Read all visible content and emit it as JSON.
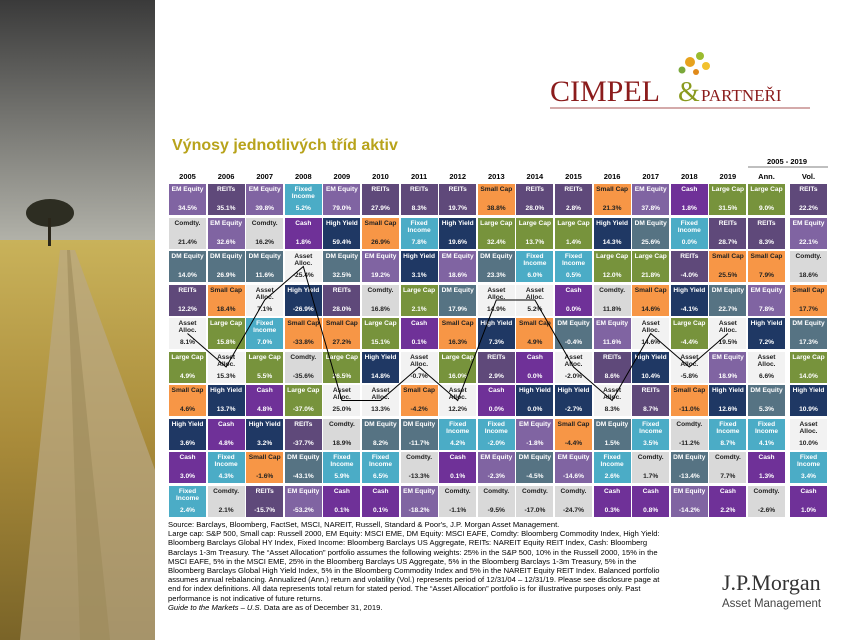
{
  "logo": {
    "name": "CIMPEL",
    "amp": "&",
    "suffix": "PARTNEŘI"
  },
  "title": "Výnosy jednotlivých tříd aktiv",
  "table": {
    "period": "2005 - 2019",
    "headers": [
      "2005",
      "2006",
      "2007",
      "2008",
      "2009",
      "2010",
      "2011",
      "2012",
      "2013",
      "2014",
      "2015",
      "2016",
      "2017",
      "2018",
      "2019",
      "Ann.",
      "Vol."
    ],
    "colors": {
      "EM Equity": "#8064a2",
      "REITs": "#5f497a",
      "Small Cap": "#f79646",
      "Large Cap": "#77933c",
      "Fixed Income": "#4bacc6",
      "Cash": "#6f3198",
      "Comdty.": "#d9d9d9",
      "DM Equity": "#567383",
      "High Yield": "#1f3864",
      "Asset Alloc.": "#f2f2f2"
    },
    "rows": [
      [
        {
          "label": "EM Equity",
          "value": "34.5%"
        },
        {
          "label": "REITs",
          "value": "35.1%"
        },
        {
          "label": "EM Equity",
          "value": "39.8%"
        },
        {
          "label": "Fixed Income",
          "value": "5.2%"
        },
        {
          "label": "EM Equity",
          "value": "79.0%"
        },
        {
          "label": "REITs",
          "value": "27.9%"
        },
        {
          "label": "REITs",
          "value": "8.3%"
        },
        {
          "label": "REITs",
          "value": "19.7%"
        },
        {
          "label": "Small Cap",
          "value": "38.8%"
        },
        {
          "label": "REITs",
          "value": "28.0%"
        },
        {
          "label": "REITs",
          "value": "2.8%"
        },
        {
          "label": "Small Cap",
          "value": "21.3%"
        },
        {
          "label": "EM Equity",
          "value": "37.8%"
        },
        {
          "label": "Cash",
          "value": "1.8%"
        },
        {
          "label": "Large Cap",
          "value": "31.5%"
        },
        {
          "label": "Large Cap",
          "value": "9.0%"
        },
        {
          "label": "REITs",
          "value": "22.2%"
        }
      ],
      [
        {
          "label": "Comdty.",
          "value": "21.4%"
        },
        {
          "label": "EM Equity",
          "value": "32.6%"
        },
        {
          "label": "Comdty.",
          "value": "16.2%"
        },
        {
          "label": "Cash",
          "value": "1.8%"
        },
        {
          "label": "High Yield",
          "value": "59.4%"
        },
        {
          "label": "Small Cap",
          "value": "26.9%"
        },
        {
          "label": "Fixed Income",
          "value": "7.8%"
        },
        {
          "label": "High Yield",
          "value": "19.6%"
        },
        {
          "label": "Large Cap",
          "value": "32.4%"
        },
        {
          "label": "Large Cap",
          "value": "13.7%"
        },
        {
          "label": "Large Cap",
          "value": "1.4%"
        },
        {
          "label": "High Yield",
          "value": "14.3%"
        },
        {
          "label": "DM Equity",
          "value": "25.6%"
        },
        {
          "label": "Fixed Income",
          "value": "0.0%"
        },
        {
          "label": "REITs",
          "value": "28.7%"
        },
        {
          "label": "REITs",
          "value": "8.3%"
        },
        {
          "label": "EM Equity",
          "value": "22.1%"
        }
      ],
      [
        {
          "label": "DM Equity",
          "value": "14.0%"
        },
        {
          "label": "DM Equity",
          "value": "26.9%"
        },
        {
          "label": "DM Equity",
          "value": "11.6%"
        },
        {
          "label": "Asset Alloc.",
          "value": "-25.4%"
        },
        {
          "label": "DM Equity",
          "value": "32.5%"
        },
        {
          "label": "EM Equity",
          "value": "19.2%"
        },
        {
          "label": "High Yield",
          "value": "3.1%"
        },
        {
          "label": "EM Equity",
          "value": "18.6%"
        },
        {
          "label": "DM Equity",
          "value": "23.3%"
        },
        {
          "label": "Fixed Income",
          "value": "6.0%"
        },
        {
          "label": "Fixed Income",
          "value": "0.5%"
        },
        {
          "label": "Large Cap",
          "value": "12.0%"
        },
        {
          "label": "Large Cap",
          "value": "21.8%"
        },
        {
          "label": "REITs",
          "value": "-4.0%"
        },
        {
          "label": "Small Cap",
          "value": "25.5%"
        },
        {
          "label": "Small Cap",
          "value": "7.9%"
        },
        {
          "label": "Comdty.",
          "value": "18.6%"
        }
      ],
      [
        {
          "label": "REITs",
          "value": "12.2%"
        },
        {
          "label": "Small Cap",
          "value": "18.4%"
        },
        {
          "label": "Asset Alloc.",
          "value": "7.1%"
        },
        {
          "label": "High Yield",
          "value": "-26.9%"
        },
        {
          "label": "REITs",
          "value": "28.0%"
        },
        {
          "label": "Comdty.",
          "value": "16.8%"
        },
        {
          "label": "Large Cap",
          "value": "2.1%"
        },
        {
          "label": "DM Equity",
          "value": "17.9%"
        },
        {
          "label": "Asset Alloc.",
          "value": "14.9%"
        },
        {
          "label": "Asset Alloc.",
          "value": "5.2%"
        },
        {
          "label": "Cash",
          "value": "0.0%"
        },
        {
          "label": "Comdty.",
          "value": "11.8%"
        },
        {
          "label": "Small Cap",
          "value": "14.6%"
        },
        {
          "label": "High Yield",
          "value": "-4.1%"
        },
        {
          "label": "DM Equity",
          "value": "22.7%"
        },
        {
          "label": "EM Equity",
          "value": "7.8%"
        },
        {
          "label": "Small Cap",
          "value": "17.7%"
        }
      ],
      [
        {
          "label": "Asset Alloc.",
          "value": "8.1%"
        },
        {
          "label": "Large Cap",
          "value": "15.8%"
        },
        {
          "label": "Fixed Income",
          "value": "7.0%"
        },
        {
          "label": "Small Cap",
          "value": "-33.8%"
        },
        {
          "label": "Small Cap",
          "value": "27.2%"
        },
        {
          "label": "Large Cap",
          "value": "15.1%"
        },
        {
          "label": "Cash",
          "value": "0.1%"
        },
        {
          "label": "Small Cap",
          "value": "16.3%"
        },
        {
          "label": "High Yield",
          "value": "7.3%"
        },
        {
          "label": "Small Cap",
          "value": "4.9%"
        },
        {
          "label": "DM Equity",
          "value": "-0.4%"
        },
        {
          "label": "EM Equity",
          "value": "11.6%"
        },
        {
          "label": "Asset Alloc.",
          "value": "14.6%"
        },
        {
          "label": "Large Cap",
          "value": "-4.4%"
        },
        {
          "label": "Asset Alloc.",
          "value": "19.5%"
        },
        {
          "label": "High Yield",
          "value": "7.2%"
        },
        {
          "label": "DM Equity",
          "value": "17.3%"
        }
      ],
      [
        {
          "label": "Large Cap",
          "value": "4.9%"
        },
        {
          "label": "Asset Alloc.",
          "value": "15.3%"
        },
        {
          "label": "Large Cap",
          "value": "5.5%"
        },
        {
          "label": "Comdty.",
          "value": "-35.6%"
        },
        {
          "label": "Large Cap",
          "value": "26.5%"
        },
        {
          "label": "High Yield",
          "value": "14.8%"
        },
        {
          "label": "Asset Alloc.",
          "value": "-0.7%"
        },
        {
          "label": "Large Cap",
          "value": "16.0%"
        },
        {
          "label": "REITs",
          "value": "2.9%"
        },
        {
          "label": "Cash",
          "value": "0.0%"
        },
        {
          "label": "Asset Alloc.",
          "value": "-2.0%"
        },
        {
          "label": "REITs",
          "value": "8.6%"
        },
        {
          "label": "High Yield",
          "value": "10.4%"
        },
        {
          "label": "Asset Alloc.",
          "value": "-5.8%"
        },
        {
          "label": "EM Equity",
          "value": "18.9%"
        },
        {
          "label": "Asset Alloc.",
          "value": "6.6%"
        },
        {
          "label": "Large Cap",
          "value": "14.0%"
        }
      ],
      [
        {
          "label": "Small Cap",
          "value": "4.6%"
        },
        {
          "label": "High Yield",
          "value": "13.7%"
        },
        {
          "label": "Cash",
          "value": "4.8%"
        },
        {
          "label": "Large Cap",
          "value": "-37.0%"
        },
        {
          "label": "Asset Alloc.",
          "value": "25.0%"
        },
        {
          "label": "Asset Alloc.",
          "value": "13.3%"
        },
        {
          "label": "Small Cap",
          "value": "-4.2%"
        },
        {
          "label": "Asset Alloc.",
          "value": "12.2%"
        },
        {
          "label": "Cash",
          "value": "0.0%"
        },
        {
          "label": "High Yield",
          "value": "0.0%"
        },
        {
          "label": "High Yield",
          "value": "-2.7%"
        },
        {
          "label": "Asset Alloc.",
          "value": "8.3%"
        },
        {
          "label": "REITs",
          "value": "8.7%"
        },
        {
          "label": "Small Cap",
          "value": "-11.0%"
        },
        {
          "label": "High Yield",
          "value": "12.6%"
        },
        {
          "label": "DM Equity",
          "value": "5.3%"
        },
        {
          "label": "High Yield",
          "value": "10.9%"
        }
      ],
      [
        {
          "label": "High Yield",
          "value": "3.6%"
        },
        {
          "label": "Cash",
          "value": "4.8%"
        },
        {
          "label": "High Yield",
          "value": "3.2%"
        },
        {
          "label": "REITs",
          "value": "-37.7%"
        },
        {
          "label": "Comdty.",
          "value": "18.9%"
        },
        {
          "label": "DM Equity",
          "value": "8.2%"
        },
        {
          "label": "DM Equity",
          "value": "-11.7%"
        },
        {
          "label": "Fixed Income",
          "value": "4.2%"
        },
        {
          "label": "Fixed Income",
          "value": "-2.0%"
        },
        {
          "label": "EM Equity",
          "value": "-1.8%"
        },
        {
          "label": "Small Cap",
          "value": "-4.4%"
        },
        {
          "label": "DM Equity",
          "value": "1.5%"
        },
        {
          "label": "Fixed Income",
          "value": "3.5%"
        },
        {
          "label": "Comdty.",
          "value": "-11.2%"
        },
        {
          "label": "Fixed Income",
          "value": "8.7%"
        },
        {
          "label": "Fixed Income",
          "value": "4.1%"
        },
        {
          "label": "Asset Alloc.",
          "value": "10.0%"
        }
      ],
      [
        {
          "label": "Cash",
          "value": "3.0%"
        },
        {
          "label": "Fixed Income",
          "value": "4.3%"
        },
        {
          "label": "Small Cap",
          "value": "-1.6%"
        },
        {
          "label": "DM Equity",
          "value": "-43.1%"
        },
        {
          "label": "Fixed Income",
          "value": "5.9%"
        },
        {
          "label": "Fixed Income",
          "value": "6.5%"
        },
        {
          "label": "Comdty.",
          "value": "-13.3%"
        },
        {
          "label": "Cash",
          "value": "0.1%"
        },
        {
          "label": "EM Equity",
          "value": "-2.3%"
        },
        {
          "label": "DM Equity",
          "value": "-4.5%"
        },
        {
          "label": "EM Equity",
          "value": "-14.6%"
        },
        {
          "label": "Fixed Income",
          "value": "2.6%"
        },
        {
          "label": "Comdty.",
          "value": "1.7%"
        },
        {
          "label": "DM Equity",
          "value": "-13.4%"
        },
        {
          "label": "Comdty.",
          "value": "7.7%"
        },
        {
          "label": "Cash",
          "value": "1.3%"
        },
        {
          "label": "Fixed Income",
          "value": "3.4%"
        }
      ],
      [
        {
          "label": "Fixed Income",
          "value": "2.4%"
        },
        {
          "label": "Comdty.",
          "value": "2.1%"
        },
        {
          "label": "REITs",
          "value": "-15.7%"
        },
        {
          "label": "EM Equity",
          "value": "-53.2%"
        },
        {
          "label": "Cash",
          "value": "0.1%"
        },
        {
          "label": "Cash",
          "value": "0.1%"
        },
        {
          "label": "EM Equity",
          "value": "-18.2%"
        },
        {
          "label": "Comdty.",
          "value": "-1.1%"
        },
        {
          "label": "Comdty.",
          "value": "-9.5%"
        },
        {
          "label": "Comdty.",
          "value": "-17.0%"
        },
        {
          "label": "Comdty.",
          "value": "-24.7%"
        },
        {
          "label": "Cash",
          "value": "0.3%"
        },
        {
          "label": "Cash",
          "value": "0.8%"
        },
        {
          "label": "EM Equity",
          "value": "-14.2%"
        },
        {
          "label": "Cash",
          "value": "2.2%"
        },
        {
          "label": "Comdty.",
          "value": "-2.6%"
        },
        {
          "label": "Cash",
          "value": "1.0%"
        }
      ]
    ]
  },
  "footnote": {
    "lines": [
      "Source: Barclays, Bloomberg, FactSet, MSCI, NAREIT, Russell, Standard & Poor's, J.P. Morgan Asset Management.",
      "Large cap: S&P 500, Small cap: Russell 2000, EM Equity: MSCI EME, DM Equity: MSCI EAFE, Comdty: Bloomberg Commodity Index, High Yield:",
      "Bloomberg Barclays Global HY Index, Fixed Income: Bloomberg Barclays US Aggregate, REITs: NAREIT Equity REIT Index, Cash: Bloomberg",
      "Barclays 1-3m Treasury. The “Asset Allocation” portfolio assumes the following weights: 25% in the S&P 500, 10% in the Russell 2000, 15% in the",
      "MSCI EAFE, 5% in the MSCI EME, 25% in the Bloomberg Barclays US Aggregate, 5% in the Bloomberg Barclays 1-3m Treasury, 5% in the",
      "Bloomberg Barclays Global High Yield Index, 5% in the Bloomberg Commodity Index and 5% in the NAREIT Equity REIT Index. Balanced portfolio",
      "assumes annual rebalancing. Annualized (Ann.) return and volatility (Vol.) represents period of 12/31/04 – 12/31/19. Please see disclosure page at",
      "end for index definitions. All data represents total return for stated period. The “Asset Allocation” portfolio is for illustrative purposes only. Past",
      "performance is not indicative of future returns."
    ],
    "guide": "Guide to the Markets – U.S.",
    "date": " Data are as of December 31, 2019."
  },
  "jpm": {
    "name": "J.P.Morgan",
    "division": "Asset Management"
  }
}
